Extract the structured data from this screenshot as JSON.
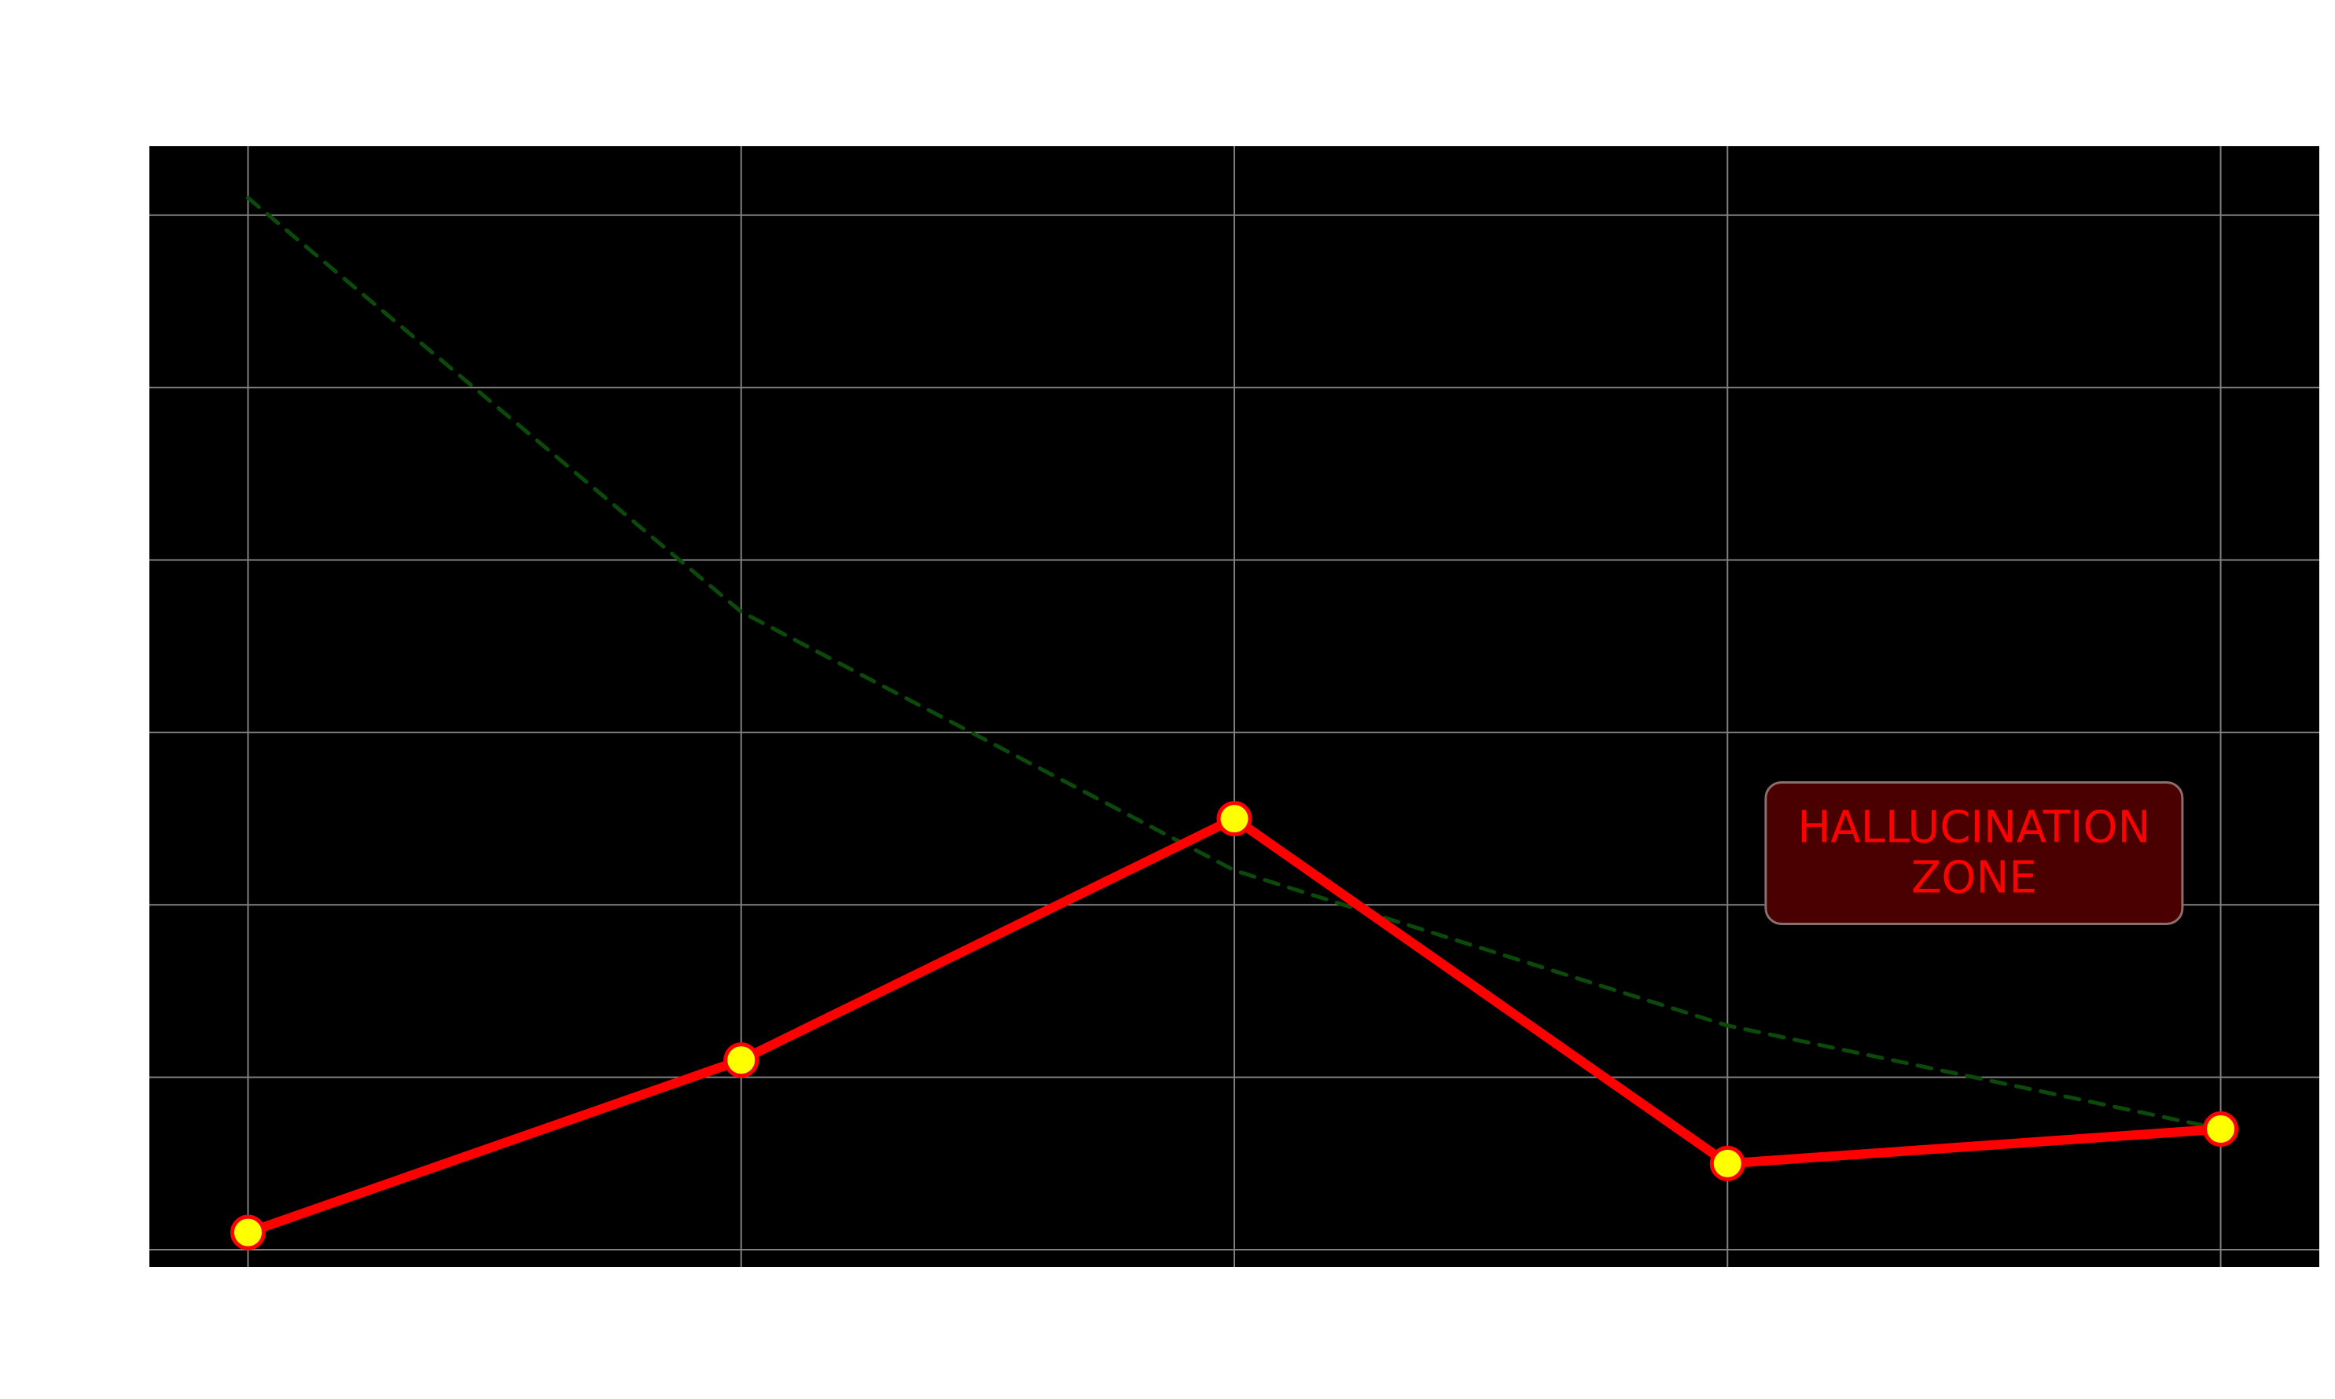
{
  "chart_data": {
    "type": "line",
    "title": "",
    "xlabel": "",
    "ylabel": "",
    "x": [
      0,
      1,
      2,
      3,
      4
    ],
    "ylim": [
      -0.1,
      6.4
    ],
    "xlim": [
      -0.2,
      4.2
    ],
    "grid": true,
    "colors": {
      "plot_background": "#000000",
      "grid": "#808080",
      "main_line": "#ff0000",
      "marker_fill": "#ffff00",
      "marker_edge": "#ff0000",
      "trend_line": "#0b4a0b",
      "annotation_fill": "#4b0000",
      "annotation_edge": "#8c6c6c",
      "annotation_text": "#ff0000"
    },
    "series": [
      {
        "values": [
          0.1,
          1.1,
          2.5,
          0.5,
          0.7
        ]
      },
      {
        "style": "dashed",
        "values": [
          6.1,
          3.7,
          2.2,
          1.3,
          0.7
        ]
      }
    ],
    "annotation": {
      "lines": [
        "HALLUCINATION",
        "ZONE"
      ],
      "x_center": 3.5,
      "y_center": 2.3
    }
  }
}
